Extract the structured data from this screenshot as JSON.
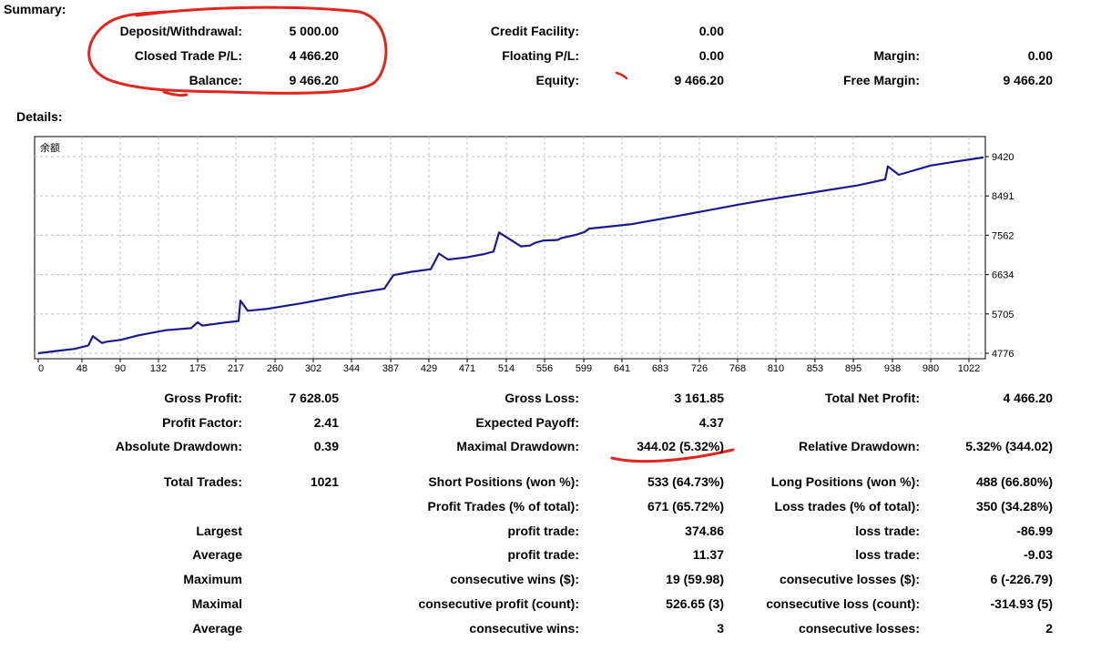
{
  "headings": {
    "summary": "Summary:",
    "details": "Details:"
  },
  "summary": [
    {
      "label": "Deposit/Withdrawal:",
      "value": "5 000.00"
    },
    {
      "label": "Closed Trade P/L:",
      "value": "4 466.20"
    },
    {
      "label": "Balance:",
      "value": "9 466.20"
    },
    {
      "label": "Credit Facility:",
      "value": "0.00"
    },
    {
      "label": "Floating P/L:",
      "value": "0.00"
    },
    {
      "label": "Equity:",
      "value": "9 466.20"
    },
    {
      "label": "Margin:",
      "value": "0.00"
    },
    {
      "label": "Free Margin:",
      "value": "9 466.20"
    }
  ],
  "colors": {
    "line": "#1a1a8c",
    "grid": "#c0c0c0",
    "annotation": "#e0261d"
  },
  "chart_data": {
    "type": "line",
    "title": "余额",
    "xlabel": "",
    "ylabel": "",
    "x_ticks": [
      0,
      48,
      90,
      132,
      175,
      217,
      260,
      302,
      344,
      387,
      429,
      471,
      514,
      556,
      599,
      641,
      683,
      726,
      768,
      810,
      853,
      895,
      938,
      980,
      1022
    ],
    "y_ticks": [
      4776,
      5705,
      6634,
      7562,
      8491,
      9420
    ],
    "xlim": [
      0,
      1038
    ],
    "ylim": [
      4776,
      9420
    ],
    "grid": true,
    "series": [
      {
        "x": [
          0,
          20,
          40,
          55,
          60,
          70,
          75,
          90,
          110,
          140,
          168,
          175,
          180,
          205,
          220,
          222,
          230,
          250,
          290,
          340,
          380,
          390,
          410,
          431,
          440,
          450,
          470,
          490,
          500,
          506,
          530,
          540,
          545,
          555,
          570,
          575,
          590,
          600,
          605,
          650,
          700,
          750,
          770,
          800,
          850,
          900,
          930,
          933,
          945,
          980,
          1010,
          1038
        ],
        "y": [
          4776,
          4830,
          4880,
          4960,
          5180,
          5020,
          5050,
          5090,
          5200,
          5320,
          5370,
          5510,
          5430,
          5500,
          5540,
          6020,
          5780,
          5820,
          5960,
          6160,
          6300,
          6620,
          6700,
          6760,
          7130,
          6990,
          7040,
          7120,
          7180,
          7630,
          7300,
          7320,
          7380,
          7440,
          7450,
          7500,
          7570,
          7640,
          7720,
          7820,
          8010,
          8210,
          8290,
          8400,
          8570,
          8740,
          8880,
          9190,
          8990,
          9210,
          9310,
          9400
        ]
      }
    ]
  },
  "stats": [
    {
      "label": "Gross Profit:",
      "value": "7 628.05"
    },
    {
      "label": "Gross Loss:",
      "value": "3 161.85"
    },
    {
      "label": "Total Net Profit:",
      "value": "4 466.20"
    },
    {
      "label": "Profit Factor:",
      "value": "2.41"
    },
    {
      "label": "Expected Payoff:",
      "value": "4.37"
    },
    {
      "label": "Absolute Drawdown:",
      "value": "0.39"
    },
    {
      "label": "Maximal Drawdown:",
      "value": "344.02 (5.32%)"
    },
    {
      "label": "Relative Drawdown:",
      "value": "5.32% (344.02)"
    },
    {
      "label": "Total Trades:",
      "value": "1021"
    },
    {
      "label": "Short Positions (won %):",
      "value": "533 (64.73%)"
    },
    {
      "label": "Long Positions (won %):",
      "value": "488 (66.80%)"
    },
    {
      "label": "Profit Trades (% of total):",
      "value": "671 (65.72%)"
    },
    {
      "label": "Loss trades (% of total):",
      "value": "350 (34.28%)"
    },
    {
      "label": "Largest"
    },
    {
      "label": "profit trade:",
      "value": "374.86"
    },
    {
      "label": "loss trade:",
      "value": "-86.99"
    },
    {
      "label": "Average"
    },
    {
      "label": "profit trade:",
      "value": "11.37"
    },
    {
      "label": "loss trade:",
      "value": "-9.03"
    },
    {
      "label": "Maximum"
    },
    {
      "label": "consecutive wins ($):",
      "value": "19 (59.98)"
    },
    {
      "label": "consecutive losses ($):",
      "value": "6 (-226.79)"
    },
    {
      "label": "Maximal"
    },
    {
      "label": "consecutive profit (count):",
      "value": "526.65 (3)"
    },
    {
      "label": "consecutive loss (count):",
      "value": "-314.93 (5)"
    },
    {
      "label": "Average"
    },
    {
      "label": "consecutive wins:",
      "value": "3"
    },
    {
      "label": "consecutive losses:",
      "value": "2"
    }
  ]
}
